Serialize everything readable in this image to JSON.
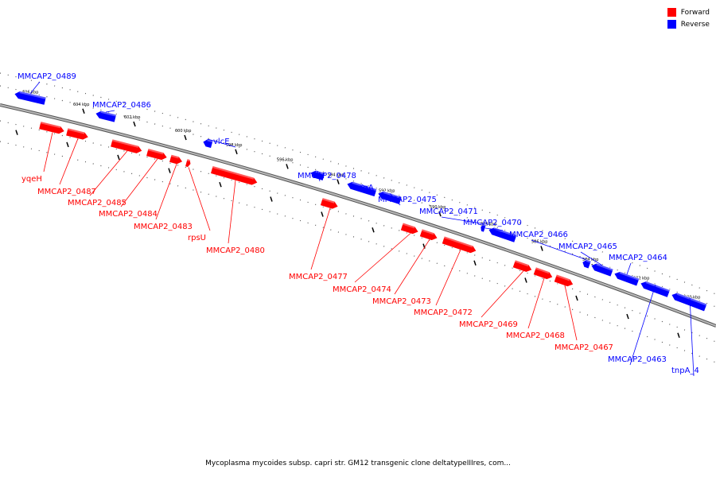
{
  "caption": "Mycoplasma mycoides subsp. capri str. GM12 transgenic clone deltatypeIIIres, com...",
  "legend": [
    {
      "label": "Forward",
      "color": "#ff0000"
    },
    {
      "label": "Reverse",
      "color": "#0000ff"
    }
  ],
  "colors": {
    "forward": "#ff0000",
    "reverse": "#0000ff",
    "backbone": "#808080"
  },
  "ticks": [
    "606 kbp",
    "604 kbp",
    "602 kbp",
    "600 kbp",
    "598 kbp",
    "596 kbp",
    "594 kbp",
    "592 kbp",
    "590 kbp",
    "588 kbp",
    "586 kbp",
    "584 kbp",
    "582 kbp",
    "580 kbp"
  ],
  "genes": [
    {
      "label": "MMCAP2_0489",
      "strand": "reverse"
    },
    {
      "label": "MMCAP2_0486",
      "strand": "reverse"
    },
    {
      "label": "vlcE",
      "strand": "reverse"
    },
    {
      "label": "MMCAP2_0478",
      "strand": "reverse"
    },
    {
      "label": "nagA",
      "strand": "reverse"
    },
    {
      "label": "MMCAP2_0475",
      "strand": "reverse"
    },
    {
      "label": "MMCAP2_0471",
      "strand": "reverse"
    },
    {
      "label": "MMCAP2_0470",
      "strand": "reverse"
    },
    {
      "label": "MMCAP2_0466",
      "strand": "reverse"
    },
    {
      "label": "MMCAP2_0465",
      "strand": "reverse"
    },
    {
      "label": "MMCAP2_0464",
      "strand": "reverse"
    },
    {
      "label": "MMCAP2_0463",
      "strand": "reverse"
    },
    {
      "label": "tnpA_4",
      "strand": "reverse"
    },
    {
      "label": "yqeH",
      "strand": "forward"
    },
    {
      "label": "MMCAP2_0487",
      "strand": "forward"
    },
    {
      "label": "MMCAP2_0485",
      "strand": "forward"
    },
    {
      "label": "MMCAP2_0484",
      "strand": "forward"
    },
    {
      "label": "MMCAP2_0483",
      "strand": "forward"
    },
    {
      "label": "rpsU",
      "strand": "forward"
    },
    {
      "label": "MMCAP2_0480",
      "strand": "forward"
    },
    {
      "label": "MMCAP2_0477",
      "strand": "forward"
    },
    {
      "label": "MMCAP2_0474",
      "strand": "forward"
    },
    {
      "label": "MMCAP2_0473",
      "strand": "forward"
    },
    {
      "label": "MMCAP2_0472",
      "strand": "forward"
    },
    {
      "label": "MMCAP2_0469",
      "strand": "forward"
    },
    {
      "label": "MMCAP2_0468",
      "strand": "forward"
    },
    {
      "label": "MMCAP2_0467",
      "strand": "forward"
    }
  ]
}
